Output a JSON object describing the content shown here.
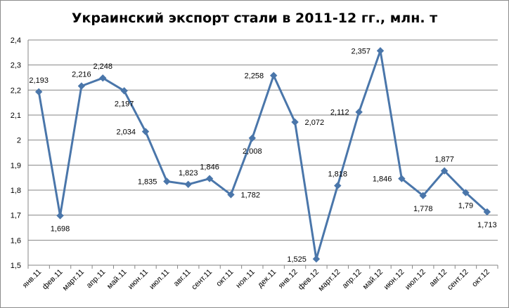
{
  "chart_data": {
    "type": "line",
    "title": "Украинский экспорт стали в 2011-12 гг., млн. т",
    "xlabel": "",
    "ylabel": "",
    "ylim": [
      1.5,
      2.4
    ],
    "y_ticks": [
      "1,5",
      "1,6",
      "1,7",
      "1,8",
      "1,9",
      "2",
      "2,1",
      "2,2",
      "2,3",
      "2,4"
    ],
    "grid": true,
    "legend": "none",
    "categories": [
      "янв.11",
      "фев.11",
      "март.11",
      "апр.11",
      "май.11",
      "июн.11",
      "июл.11",
      "авг.11",
      "сент.11",
      "окт.11",
      "ноя.11",
      "дек.11",
      "янв.12",
      "фев.12",
      "март.12",
      "апр.12",
      "май.12",
      "июн.12",
      "июл.12",
      "авг.12",
      "сент.12",
      "окт.12"
    ],
    "values": [
      2.193,
      1.698,
      2.216,
      2.248,
      2.197,
      2.034,
      1.835,
      1.823,
      1.846,
      1.782,
      2.008,
      2.258,
      2.072,
      1.525,
      1.818,
      2.112,
      2.357,
      1.846,
      1.778,
      1.877,
      1.79,
      1.713
    ],
    "data_labels": [
      "2,193",
      "1,698",
      "2,216",
      "2,248",
      "2,197",
      "2,034",
      "1,835",
      "1,823",
      "1,846",
      "1,782",
      "2,008",
      "2,258",
      "2,072",
      "1,525",
      "1,818",
      "2,112",
      "2,357",
      "1,846",
      "1,778",
      "1,877",
      "1,79",
      "1,713"
    ],
    "series_color": "#4a76aa",
    "gridline_color": "#868686"
  }
}
